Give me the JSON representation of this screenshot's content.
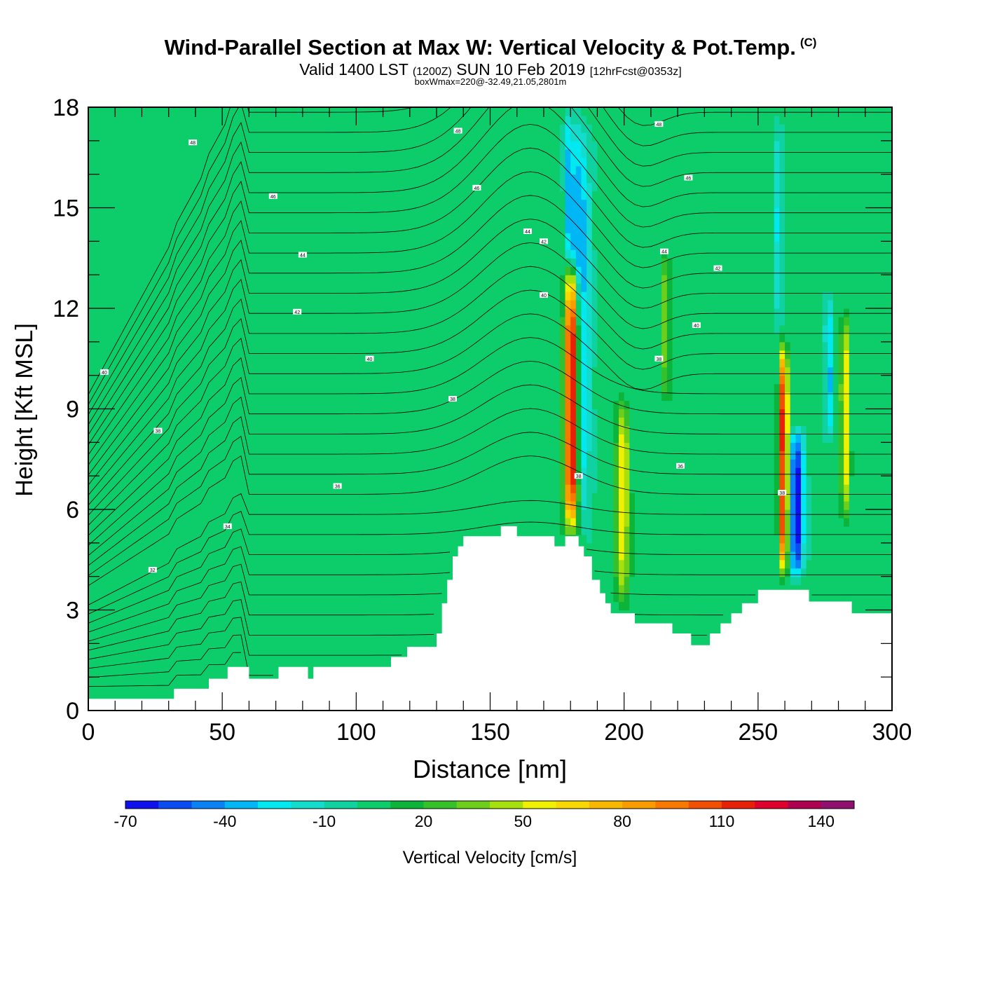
{
  "title": {
    "main": "Wind-Parallel Section at Max W: Vertical Velocity & Pot.Temp.",
    "copyright": "(C)",
    "valid_prefix": "Valid 1400 LST",
    "valid_utc": "(1200Z)",
    "valid_date": "SUN 10 Feb 2019",
    "valid_fcst": "[12hrFcst@0353z]",
    "boxinfo": "boxWmax=220@-32.49,21.05,2801m"
  },
  "chart_data": {
    "type": "heatmap",
    "xlabel": "Distance [nm]",
    "ylabel": "Height [Kft MSL]",
    "xlim": [
      0,
      300
    ],
    "ylim": [
      0,
      18
    ],
    "x_ticks": [
      "0",
      "50",
      "100",
      "150",
      "200",
      "250",
      "300"
    ],
    "y_ticks": [
      "0",
      "3",
      "6",
      "9",
      "12",
      "15",
      "18"
    ],
    "colorbar": {
      "label": "Vertical Velocity [cm/s]",
      "tick_labels": [
        "-70",
        "-40",
        "-10",
        "20",
        "50",
        "80",
        "110",
        "140"
      ],
      "bins": [
        -70,
        -60,
        -50,
        -40,
        -30,
        -20,
        -10,
        0,
        10,
        20,
        30,
        40,
        50,
        60,
        70,
        80,
        90,
        100,
        110,
        120,
        130,
        140,
        150
      ],
      "colors": [
        "#1010ee",
        "#0a4cf2",
        "#0a82f5",
        "#00b6f4",
        "#00e8f0",
        "#14dccc",
        "#0fd2a0",
        "#0ccd6a",
        "#0cb43a",
        "#36c12a",
        "#6ecf1a",
        "#a8e00e",
        "#f0f000",
        "#f8d800",
        "#f8b800",
        "#f89c00",
        "#f87800",
        "#f05000",
        "#e82008",
        "#e0002c",
        "#b00050",
        "#901070"
      ]
    },
    "terrain": [
      [
        0,
        0.35
      ],
      [
        32,
        0.35
      ],
      [
        32,
        0.65
      ],
      [
        45,
        0.65
      ],
      [
        45,
        0.95
      ],
      [
        52,
        0.95
      ],
      [
        52,
        1.3
      ],
      [
        60,
        1.3
      ],
      [
        60,
        0.95
      ],
      [
        71,
        0.95
      ],
      [
        71,
        1.3
      ],
      [
        82,
        1.3
      ],
      [
        82,
        0.95
      ],
      [
        84,
        0.95
      ],
      [
        84,
        1.3
      ],
      [
        113,
        1.3
      ],
      [
        113,
        1.6
      ],
      [
        119,
        1.6
      ],
      [
        119,
        1.9
      ],
      [
        130,
        1.9
      ],
      [
        130,
        2.3
      ],
      [
        132,
        2.3
      ],
      [
        132,
        3.2
      ],
      [
        134,
        3.2
      ],
      [
        134,
        3.9
      ],
      [
        136,
        3.9
      ],
      [
        136,
        4.6
      ],
      [
        138,
        4.6
      ],
      [
        138,
        4.9
      ],
      [
        140,
        4.9
      ],
      [
        140,
        5.2
      ],
      [
        154,
        5.2
      ],
      [
        154,
        5.5
      ],
      [
        160,
        5.5
      ],
      [
        160,
        5.2
      ],
      [
        174,
        5.2
      ],
      [
        174,
        4.9
      ],
      [
        178,
        4.9
      ],
      [
        178,
        5.2
      ],
      [
        183,
        5.2
      ],
      [
        183,
        4.9
      ],
      [
        185,
        4.9
      ],
      [
        185,
        4.6
      ],
      [
        188,
        4.6
      ],
      [
        188,
        3.9
      ],
      [
        191,
        3.9
      ],
      [
        191,
        3.5
      ],
      [
        193,
        3.5
      ],
      [
        193,
        3.2
      ],
      [
        195,
        3.2
      ],
      [
        195,
        2.9
      ],
      [
        204,
        2.9
      ],
      [
        204,
        2.6
      ],
      [
        218,
        2.6
      ],
      [
        218,
        2.3
      ],
      [
        225,
        2.3
      ],
      [
        225,
        1.95
      ],
      [
        232,
        1.95
      ],
      [
        232,
        2.3
      ],
      [
        236,
        2.3
      ],
      [
        236,
        2.6
      ],
      [
        240,
        2.6
      ],
      [
        240,
        2.9
      ],
      [
        244,
        2.9
      ],
      [
        244,
        3.2
      ],
      [
        250,
        3.2
      ],
      [
        250,
        3.6
      ],
      [
        269,
        3.6
      ],
      [
        269,
        3.25
      ],
      [
        285,
        3.25
      ],
      [
        285,
        2.9
      ],
      [
        300,
        2.9
      ]
    ],
    "vertical_velocity_bands": [
      {
        "x": 180.5,
        "ymin": 5.0,
        "ymax": 13.5,
        "peak": 145,
        "half_width_nm": 2.6
      },
      {
        "x": 183.5,
        "ymin": 5.0,
        "ymax": 18.0,
        "peak": -45,
        "half_width_nm": 3.5
      },
      {
        "x": 179.5,
        "ymin": 13.5,
        "ymax": 18.0,
        "peak": -35,
        "half_width_nm": 1.5
      },
      {
        "x": 199.5,
        "ymin": 3.0,
        "ymax": 9.5,
        "peak": 55,
        "half_width_nm": 2.5
      },
      {
        "x": 215.5,
        "ymin": 9.0,
        "ymax": 14.0,
        "peak": 35,
        "half_width_nm": 1.5
      },
      {
        "x": 259.5,
        "ymin": 3.8,
        "ymax": 11.2,
        "peak": 120,
        "half_width_nm": 1.6
      },
      {
        "x": 264.5,
        "ymin": 3.8,
        "ymax": 8.5,
        "peak": -70,
        "half_width_nm": 2.6
      },
      {
        "x": 282.5,
        "ymin": 5.5,
        "ymax": 12.0,
        "peak": 60,
        "half_width_nm": 1.6
      },
      {
        "x": 276.5,
        "ymin": 8.0,
        "ymax": 12.5,
        "peak": -35,
        "half_width_nm": 1.5
      },
      {
        "x": 257.5,
        "ymin": 11.0,
        "ymax": 18.0,
        "peak": -25,
        "half_width_nm": 1.2
      }
    ],
    "theta_contour_labels": [
      {
        "x": 39,
        "y": 16.95,
        "text": "48"
      },
      {
        "x": 69,
        "y": 15.35,
        "text": "46"
      },
      {
        "x": 80,
        "y": 13.6,
        "text": "44"
      },
      {
        "x": 78,
        "y": 11.9,
        "text": "42"
      },
      {
        "x": 6,
        "y": 10.1,
        "text": "40"
      },
      {
        "x": 26,
        "y": 8.35,
        "text": "38"
      },
      {
        "x": 93,
        "y": 6.7,
        "text": "36"
      },
      {
        "x": 52,
        "y": 5.5,
        "text": "34"
      },
      {
        "x": 24,
        "y": 4.2,
        "text": "32"
      },
      {
        "x": 105,
        "y": 10.5,
        "text": "40"
      },
      {
        "x": 136,
        "y": 9.3,
        "text": "38"
      },
      {
        "x": 138,
        "y": 17.3,
        "text": "48"
      },
      {
        "x": 145,
        "y": 15.6,
        "text": "46"
      },
      {
        "x": 164,
        "y": 14.3,
        "text": "44"
      },
      {
        "x": 170,
        "y": 14.0,
        "text": "42"
      },
      {
        "x": 170,
        "y": 12.4,
        "text": "40"
      },
      {
        "x": 183,
        "y": 7.0,
        "text": "38"
      },
      {
        "x": 213,
        "y": 17.5,
        "text": "48"
      },
      {
        "x": 224,
        "y": 15.9,
        "text": "46"
      },
      {
        "x": 215,
        "y": 13.7,
        "text": "44"
      },
      {
        "x": 235,
        "y": 13.2,
        "text": "42"
      },
      {
        "x": 227,
        "y": 11.5,
        "text": "40"
      },
      {
        "x": 213,
        "y": 10.5,
        "text": "38"
      },
      {
        "x": 221,
        "y": 7.3,
        "text": "36"
      },
      {
        "x": 259,
        "y": 6.5,
        "text": "38"
      }
    ]
  }
}
